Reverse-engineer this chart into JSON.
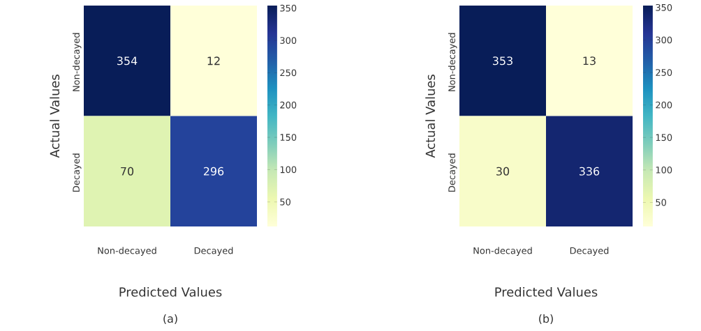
{
  "chart_data": [
    {
      "type": "heatmap",
      "categories": [
        "Non-decayed",
        "Decayed"
      ],
      "y_categories": [
        "Non-decayed",
        "Decayed"
      ],
      "cells": [
        [
          354,
          12
        ],
        [
          70,
          296
        ]
      ],
      "clim": [
        12,
        354
      ],
      "cticks": [
        50,
        100,
        150,
        200,
        250,
        300,
        350
      ],
      "data_labels": true,
      "xlabel": "Predicted Values",
      "ylabel": "Actual Values",
      "annotations": [
        "(a)"
      ]
    },
    {
      "type": "heatmap",
      "categories": [
        "Non-decayed",
        "Decayed"
      ],
      "y_categories": [
        "Non-decayed",
        "Decayed"
      ],
      "cells": [
        [
          353,
          13
        ],
        [
          30,
          336
        ]
      ],
      "clim": [
        13,
        353
      ],
      "cticks": [
        50,
        100,
        150,
        200,
        250,
        300,
        350
      ],
      "data_labels": true,
      "xlabel": "Predicted Values",
      "ylabel": "Actual Values",
      "annotations": [
        "(b)"
      ]
    }
  ]
}
